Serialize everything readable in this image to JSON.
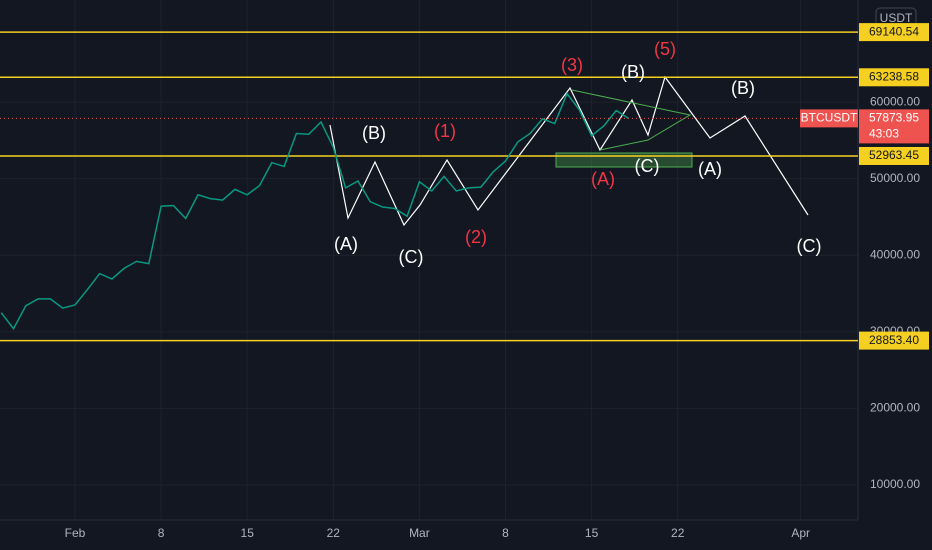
{
  "chart_data": {
    "type": "line",
    "currency": "USDT",
    "categories": [
      null,
      null,
      null,
      null,
      null,
      null,
      "Feb",
      null,
      null,
      null,
      null,
      null,
      null,
      "8",
      null,
      null,
      null,
      null,
      null,
      null,
      "15",
      null,
      null,
      null,
      null,
      null,
      null,
      "22",
      null,
      null,
      null,
      null,
      null,
      null,
      "Mar",
      null,
      null,
      null,
      null,
      null,
      null,
      "8",
      null,
      null,
      null,
      null,
      null,
      null,
      "15",
      null,
      null,
      null,
      null,
      null,
      null,
      "22",
      null,
      null,
      null,
      null,
      null,
      null,
      null,
      null,
      null,
      "Apr",
      null,
      null,
      null
    ],
    "series": [
      {
        "name": "BTCUSDT",
        "color": "#089981",
        "values": [
          32500,
          30400,
          33400,
          34300,
          34300,
          33100,
          33500,
          35500,
          37600,
          36900,
          38300,
          39200,
          38900,
          46400,
          46500,
          44800,
          47900,
          47400,
          47200,
          48600,
          47900,
          49100,
          52100,
          51600,
          55900,
          55800,
          57400,
          54100,
          48800,
          49700,
          47000,
          46300,
          46100,
          45100,
          49600,
          48400,
          50300,
          48400,
          48800,
          48900,
          50900,
          52300,
          54800,
          55900,
          57800,
          57200,
          61100,
          59000,
          55600,
          56900,
          58900,
          57873.95,
          null,
          null,
          null,
          null,
          null,
          null,
          null,
          null,
          null,
          null,
          null,
          null,
          null,
          null,
          null,
          null,
          null
        ],
        "last_label": "57873.95",
        "countdown": "43:03"
      }
    ],
    "levels": [
      {
        "value": 69140.54,
        "label": "69140.54"
      },
      {
        "value": 63238.58,
        "label": "63238.58"
      },
      {
        "value": 52963.45,
        "label": "52963.45"
      },
      {
        "value": 28853.4,
        "label": "28853.40"
      }
    ],
    "level_color": "#f5d020",
    "ylim": [
      5425,
      73333
    ],
    "yticks": [
      {
        "value": 10000,
        "label": "10000.00"
      },
      {
        "value": 20000,
        "label": "20000.00"
      },
      {
        "value": 30000,
        "label": "30000.00"
      },
      {
        "value": 40000,
        "label": "40000.00"
      },
      {
        "value": 50000,
        "label": "50000.00"
      },
      {
        "value": 60000,
        "label": "60000.00"
      }
    ],
    "grid": true,
    "annotations": [
      {
        "text": "(A)",
        "color": "#ffffff"
      },
      {
        "text": "(B)",
        "color": "#ffffff"
      },
      {
        "text": "(C)",
        "color": "#ffffff"
      },
      {
        "text": "(1)",
        "color": "#f23645"
      },
      {
        "text": "(2)",
        "color": "#f23645"
      },
      {
        "text": "(3)",
        "color": "#f23645"
      },
      {
        "text": "(5)",
        "color": "#f23645"
      },
      {
        "text": "(B)",
        "color": "#ffffff"
      },
      {
        "text": "(A)",
        "color": "#f23645"
      },
      {
        "text": "(C)",
        "color": "#ffffff"
      },
      {
        "text": "(A)",
        "color": "#ffffff"
      },
      {
        "text": "(B)",
        "color": "#ffffff"
      },
      {
        "text": "(C)",
        "color": "#ffffff"
      }
    ]
  }
}
